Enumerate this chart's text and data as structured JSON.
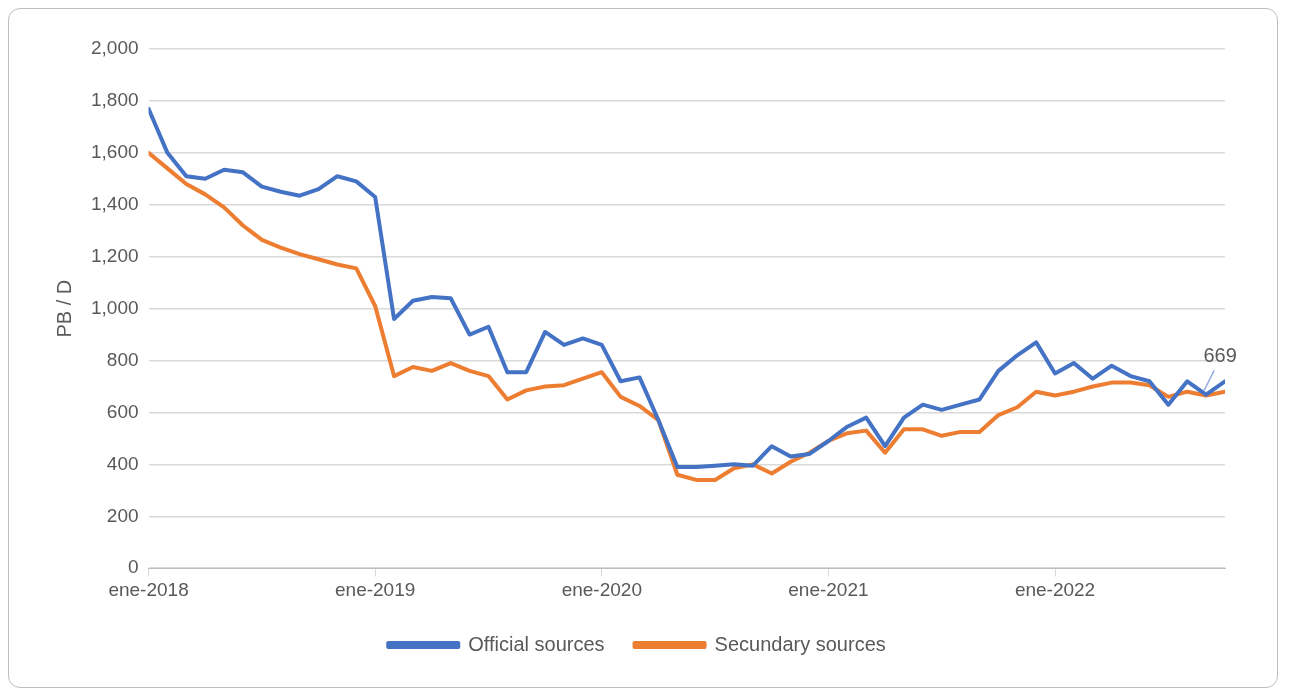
{
  "chart_data": {
    "type": "line",
    "ylabel": "PB / D",
    "x": [
      "2018-01",
      "2018-02",
      "2018-03",
      "2018-04",
      "2018-05",
      "2018-06",
      "2018-07",
      "2018-08",
      "2018-09",
      "2018-10",
      "2018-11",
      "2018-12",
      "2019-01",
      "2019-02",
      "2019-03",
      "2019-04",
      "2019-05",
      "2019-06",
      "2019-07",
      "2019-08",
      "2019-09",
      "2019-10",
      "2019-11",
      "2019-12",
      "2020-01",
      "2020-02",
      "2020-03",
      "2020-04",
      "2020-05",
      "2020-06",
      "2020-07",
      "2020-08",
      "2020-09",
      "2020-10",
      "2020-11",
      "2020-12",
      "2021-01",
      "2021-02",
      "2021-03",
      "2021-04",
      "2021-05",
      "2021-06",
      "2021-07",
      "2021-08",
      "2021-09",
      "2021-10",
      "2021-11",
      "2021-12",
      "2022-01",
      "2022-02",
      "2022-03",
      "2022-04",
      "2022-05",
      "2022-06",
      "2022-07",
      "2022-08",
      "2022-09",
      "2022-10"
    ],
    "series": [
      {
        "name": "Official sources",
        "color": "#4472c4",
        "values": [
          1770,
          1600,
          1510,
          1500,
          1535,
          1525,
          1470,
          1450,
          1435,
          1460,
          1510,
          1490,
          1430,
          960,
          1030,
          1045,
          1040,
          900,
          930,
          755,
          755,
          910,
          860,
          885,
          860,
          720,
          735,
          570,
          390,
          390,
          395,
          400,
          395,
          470,
          430,
          440,
          490,
          545,
          580,
          470,
          580,
          630,
          610,
          630,
          650,
          760,
          820,
          870,
          750,
          790,
          730,
          780,
          740,
          720,
          630,
          720,
          669,
          720
        ]
      },
      {
        "name": "Secundary sources",
        "color": "#ed7d31",
        "values": [
          1600,
          1540,
          1480,
          1440,
          1390,
          1320,
          1265,
          1235,
          1210,
          1190,
          1170,
          1155,
          1010,
          740,
          775,
          760,
          790,
          760,
          740,
          650,
          685,
          700,
          705,
          730,
          755,
          660,
          625,
          570,
          360,
          340,
          340,
          385,
          400,
          365,
          410,
          445,
          490,
          520,
          530,
          445,
          535,
          535,
          510,
          525,
          525,
          590,
          620,
          680,
          665,
          680,
          700,
          715,
          715,
          705,
          660,
          680,
          665,
          680
        ]
      }
    ],
    "xlim": [
      "2018-01",
      "2022-10"
    ],
    "xticks": [
      {
        "value": "2018-01",
        "label": "ene-2018"
      },
      {
        "value": "2019-01",
        "label": "ene-2019"
      },
      {
        "value": "2020-01",
        "label": "ene-2020"
      },
      {
        "value": "2021-01",
        "label": "ene-2021"
      },
      {
        "value": "2022-01",
        "label": "ene-2022"
      }
    ],
    "ylim": [
      0,
      2000
    ],
    "yticks": [
      0,
      200,
      400,
      600,
      800,
      {
        "value": 1000,
        "label": "1,000"
      },
      {
        "value": 1200,
        "label": "1,200"
      },
      {
        "value": 1400,
        "label": "1,400"
      },
      {
        "value": 1600,
        "label": "1,600"
      },
      {
        "value": 1800,
        "label": "1,800"
      },
      {
        "value": 2000,
        "label": "2,000"
      }
    ],
    "annotations": [
      {
        "text": "669",
        "x": "2022-09",
        "y": 669
      }
    ],
    "grid": "y",
    "legend": "bottom",
    "marker": "none",
    "line_style": "solid"
  }
}
